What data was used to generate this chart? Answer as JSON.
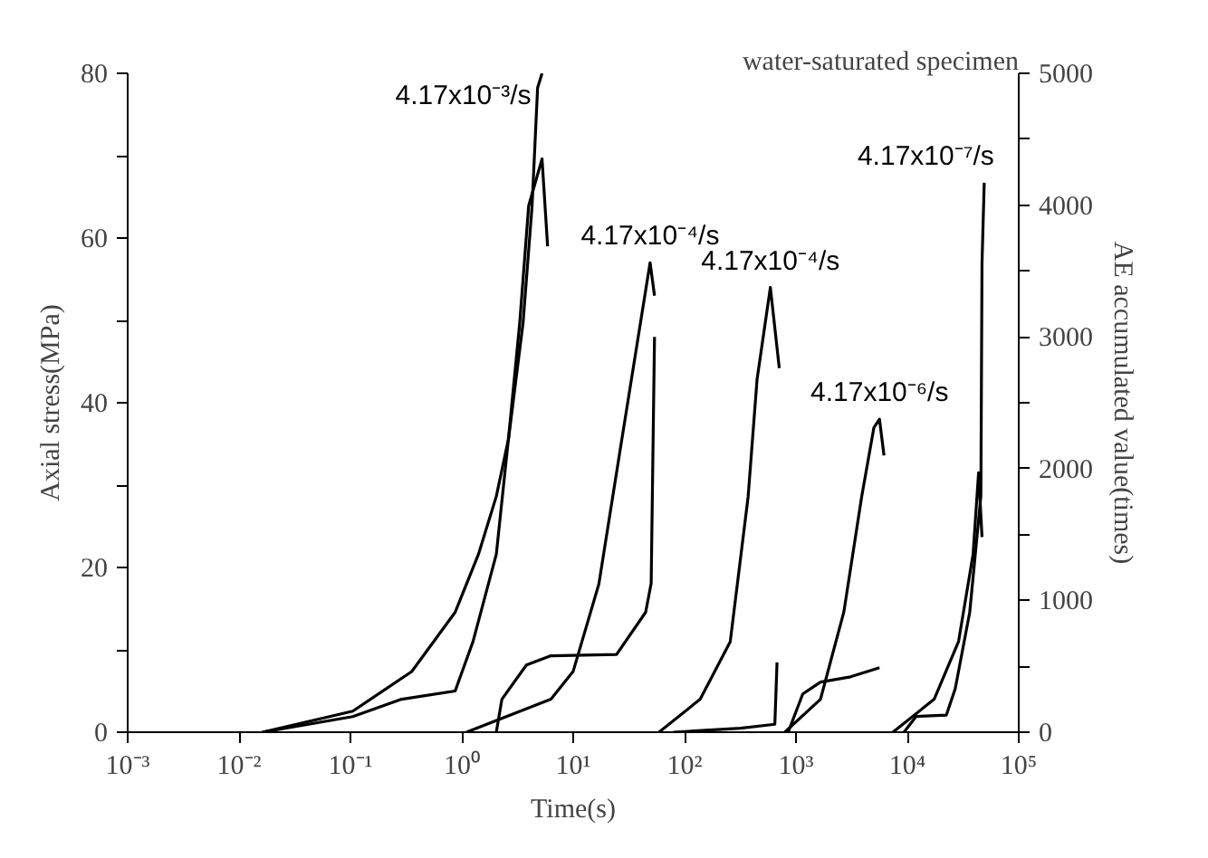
{
  "chart_data": {
    "type": "line",
    "title": "water-saturated specimen",
    "xlabel": "Time(s)",
    "ylabel": "Axial stress(MPa)",
    "y2label": "AE accumulated value(times)",
    "log": "x",
    "grid": false,
    "legend": false,
    "marker": "none",
    "line_style": "solid",
    "xlim": [
      0.001,
      100000
    ],
    "xticks": [
      {
        "value": 0.001,
        "label": "10⁻³"
      },
      {
        "value": 0.01,
        "label": "10⁻²"
      },
      {
        "value": 0.1,
        "label": "10⁻¹"
      },
      {
        "value": 1,
        "label": "10⁰"
      },
      {
        "value": 10,
        "label": "10¹"
      },
      {
        "value": 100,
        "label": "10²"
      },
      {
        "value": 1000,
        "label": "10³"
      },
      {
        "value": 10000,
        "label": "10⁴"
      },
      {
        "value": 100000,
        "label": "10⁵"
      }
    ],
    "ylim": [
      0,
      80
    ],
    "yticks": [
      0,
      {
        "value": 10,
        "label": null
      },
      20,
      {
        "value": 30,
        "label": null
      },
      40,
      {
        "value": 50,
        "label": null
      },
      60,
      {
        "value": 70,
        "label": null
      },
      80
    ],
    "y2lim": [
      0,
      5000
    ],
    "y2ticks": [
      0,
      {
        "value": 500,
        "label": null
      },
      1000,
      {
        "value": 1500,
        "label": null
      },
      2000,
      {
        "value": 2500,
        "label": null
      },
      3000,
      {
        "value": 3500,
        "label": null
      },
      4000,
      {
        "value": 4500,
        "label": null
      },
      5000
    ],
    "series": [
      {
        "color": "#000000",
        "x": [
          0.0162,
          0.105,
          0.288,
          0.871,
          1.26,
          2.04,
          2.63,
          3.31,
          3.98,
          5.25,
          5.89
        ],
        "values": [
          0,
          1.9,
          4.0,
          5.0,
          11.0,
          21.6,
          35.8,
          49.7,
          63.9,
          69.6,
          59
        ]
      },
      {
        "name": "4.17x10⁻³/s",
        "color": "#000000",
        "axis": "y2",
        "x": [
          0.0162,
          0.105,
          0.355,
          0.871,
          1.41,
          2.04,
          2.63,
          3.55,
          4.27,
          4.79,
          5.25
        ],
        "values": [
          0,
          160,
          460,
          910,
          1350,
          1790,
          2230,
          3110,
          3990,
          4890,
          5000
        ]
      },
      {
        "name": "4.17x10⁻⁴/s",
        "color": "#000000",
        "x": [
          1.1,
          6.31,
          10,
          17,
          27.5,
          36.3,
          49,
          53.7
        ],
        "values": [
          0,
          4,
          7.4,
          18,
          35.8,
          46,
          57,
          53
        ]
      },
      {
        "color": "#000000",
        "axis": "y2",
        "x": [
          2.04,
          2.29,
          3.8,
          6.31,
          24.5,
          44.7,
          50.1,
          53.7
        ],
        "values": [
          0,
          250,
          510,
          580,
          590,
          910,
          1130,
          3000
        ]
      },
      {
        "name": "4.17x10⁻⁴/s",
        "color": "#000000",
        "x": [
          58.9,
          138,
          257,
          372,
          447,
          589,
          708
        ],
        "values": [
          0,
          4,
          11,
          28.6,
          42.8,
          54,
          44.2
        ]
      },
      {
        "color": "#000000",
        "axis": "y2",
        "x": [
          79,
          316,
          646,
          676
        ],
        "values": [
          0,
          30,
          60,
          530
        ]
      },
      {
        "name": "4.17x10⁻⁶/s",
        "color": "#000000",
        "x": [
          794,
          1660,
          2690,
          3890,
          5010,
          5620,
          6170
        ],
        "values": [
          0,
          4,
          14.6,
          28.6,
          37,
          38,
          33.6
        ]
      },
      {
        "color": "#000000",
        "axis": "y2",
        "x": [
          851,
          1150,
          1660,
          3090,
          5620
        ],
        "values": [
          0,
          290,
          380,
          420,
          490
        ]
      },
      {
        "color": "#000000",
        "x": [
          7410,
          17400,
          28800,
          38900,
          43600,
          46800
        ],
        "values": [
          0,
          4,
          11,
          21.6,
          31.5,
          23.7
        ]
      },
      {
        "name": "4.17x10⁻⁷/s",
        "color": "#000000",
        "axis": "y2",
        "x": [
          9330,
          12000,
          22400,
          26900,
          36300,
          45700,
          46800,
          49000
        ],
        "values": [
          0,
          120,
          130,
          330,
          910,
          1790,
          3560,
          4170
        ]
      }
    ]
  }
}
